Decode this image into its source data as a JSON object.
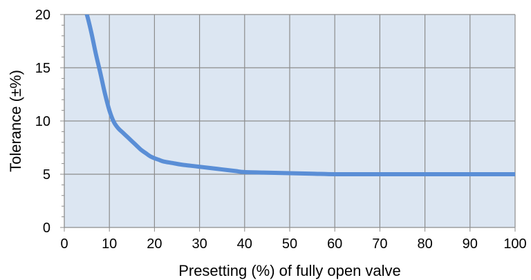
{
  "chart_data": {
    "type": "line",
    "title": "",
    "xlabel": "Presetting (%) of fully open valve",
    "ylabel": "Tolerance (±%)",
    "xlim": [
      0,
      100
    ],
    "ylim": [
      0,
      20
    ],
    "x_ticks": [
      0,
      10,
      20,
      30,
      40,
      50,
      60,
      70,
      80,
      90,
      100
    ],
    "y_ticks": [
      0,
      5,
      10,
      15,
      20
    ],
    "x_tick_labels": [
      "0",
      "10",
      "20",
      "30",
      "40",
      "50",
      "60",
      "70",
      "80",
      "90",
      "100"
    ],
    "y_tick_labels": [
      "0",
      "5",
      "10",
      "15",
      "20"
    ],
    "grid": true,
    "legend": "none",
    "colors": {
      "plot_background": "#dce6f2",
      "grid": "#8c8c8c",
      "line": "#5a8ed6",
      "text": "#000000"
    },
    "series": [
      {
        "x": [
          4.5,
          5,
          6,
          7,
          8,
          9,
          10,
          11,
          12,
          13,
          14,
          15,
          16,
          17,
          18,
          19,
          20,
          21,
          22,
          24,
          26,
          28,
          30,
          32,
          35,
          38,
          40,
          45,
          50,
          55,
          60,
          65,
          70,
          80,
          90,
          100
        ],
        "y": [
          20.4,
          20.0,
          18.3,
          16.3,
          14.5,
          12.6,
          11.0,
          9.9,
          9.3,
          8.9,
          8.5,
          8.1,
          7.7,
          7.3,
          7.0,
          6.7,
          6.5,
          6.35,
          6.2,
          6.05,
          5.9,
          5.8,
          5.7,
          5.6,
          5.45,
          5.3,
          5.2,
          5.15,
          5.1,
          5.05,
          5.0,
          5.0,
          5.0,
          5.0,
          5.0,
          5.0
        ]
      }
    ]
  }
}
